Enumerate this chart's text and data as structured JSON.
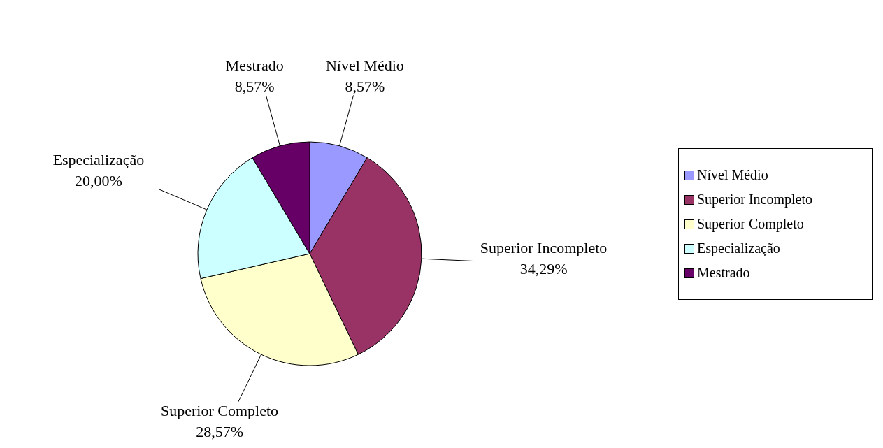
{
  "chart_data": {
    "type": "pie",
    "categories": [
      "Nível Médio",
      "Superior Incompleto",
      "Superior Completo",
      "Especialização",
      "Mestrado"
    ],
    "values": [
      8.57,
      34.29,
      28.57,
      20.0,
      8.57
    ],
    "value_labels": [
      "8,57%",
      "34,29%",
      "28,57%",
      "20,00%",
      "8,57%"
    ],
    "colors": [
      "#9999ff",
      "#993366",
      "#ffffcc",
      "#ccffff",
      "#660066"
    ],
    "legend": "right"
  }
}
